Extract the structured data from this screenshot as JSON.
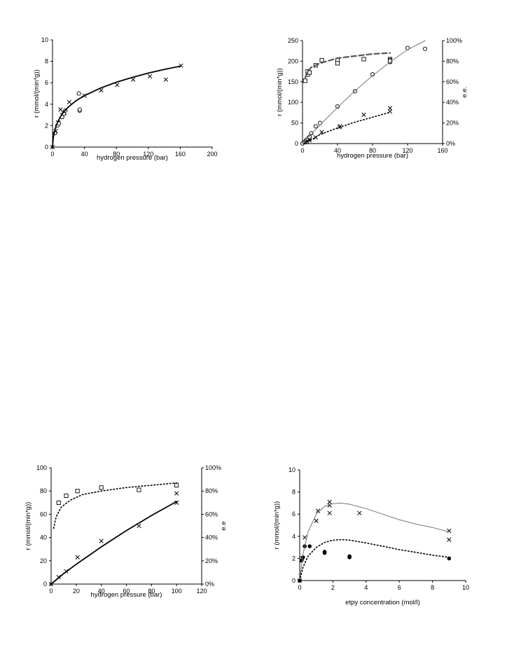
{
  "chart_data": [
    {
      "type": "scatter",
      "xlabel": "hydrogen  pressure (bar)",
      "ylabel": "r (mmol/(min*g))",
      "xlim": [
        0,
        200
      ],
      "ylim": [
        0,
        10
      ],
      "xticks": [
        0,
        40,
        80,
        120,
        160,
        200
      ],
      "yticks": [
        0,
        2,
        4,
        6,
        8,
        10
      ],
      "grid": false,
      "series": [
        {
          "marker": "cross",
          "x": [
            0,
            4,
            7,
            10,
            12,
            15,
            21,
            40,
            61,
            81,
            101,
            122,
            142,
            161
          ],
          "y": [
            0,
            1.5,
            2.3,
            3.5,
            3.0,
            3.2,
            4.2,
            4.8,
            5.3,
            5.8,
            6.3,
            6.6,
            6.3,
            7.6
          ]
        },
        {
          "marker": "circle",
          "x": [
            3,
            6,
            8,
            12,
            14,
            16,
            33,
            34,
            34
          ],
          "y": [
            1.3,
            2.0,
            2.2,
            2.8,
            3.1,
            3.4,
            5.0,
            3.4,
            3.5
          ]
        },
        {
          "marker": "none",
          "line": "solid-thick",
          "x": [
            0,
            1,
            3,
            5,
            10,
            15,
            20,
            30,
            40,
            60,
            80,
            100,
            120,
            140,
            160
          ],
          "y": [
            0,
            0.9,
            1.6,
            2.1,
            2.85,
            3.35,
            3.75,
            4.35,
            4.8,
            5.5,
            6.05,
            6.5,
            6.9,
            7.25,
            7.55
          ]
        }
      ]
    },
    {
      "type": "scatter",
      "xlabel": "hydrogen pressure (bar)",
      "ylabel": "r (mmol/(min*g))",
      "y2label": "e.e.",
      "xlim": [
        0,
        160
      ],
      "ylim": [
        0,
        250
      ],
      "y2lim": [
        0,
        100
      ],
      "xticks": [
        0,
        40,
        80,
        120,
        160
      ],
      "yticks": [
        0,
        50,
        100,
        150,
        200,
        250
      ],
      "y2ticks": [
        "0%",
        "20%",
        "40%",
        "60%",
        "80%",
        "100%"
      ],
      "grid": false,
      "series": [
        {
          "marker": "circle",
          "axis": "left",
          "x": [
            0,
            2,
            4,
            6,
            8,
            10,
            15,
            20,
            40,
            60,
            80,
            100,
            120,
            140
          ],
          "y": [
            0,
            3,
            8,
            12,
            16,
            25,
            42,
            50,
            90,
            127,
            168,
            198,
            232,
            230
          ]
        },
        {
          "marker": "cross",
          "axis": "left",
          "x": [
            3,
            5,
            8,
            15,
            22,
            42,
            43,
            70,
            100,
            100
          ],
          "y": [
            3,
            5,
            8,
            15,
            28,
            40,
            42,
            70,
            78,
            86
          ]
        },
        {
          "marker": "square",
          "axis": "right",
          "x": [
            3,
            6,
            6,
            8,
            15,
            22,
            40,
            40,
            70,
            100,
            100,
            100
          ],
          "y": [
            61,
            70,
            67,
            69,
            76,
            81,
            81,
            78,
            82,
            82,
            81,
            80
          ]
        },
        {
          "marker": "none",
          "axis": "left",
          "line": "solid-gray",
          "x": [
            0,
            20,
            40,
            60,
            80,
            100,
            120,
            140
          ],
          "y": [
            0,
            45,
            88,
            128,
            165,
            198,
            228,
            250
          ]
        },
        {
          "marker": "none",
          "axis": "left",
          "line": "dotted",
          "x": [
            3,
            20,
            40,
            60,
            80,
            100
          ],
          "y": [
            0,
            22,
            38,
            52,
            64,
            76
          ]
        },
        {
          "marker": "none",
          "axis": "right",
          "line": "dashed-thick",
          "x": [
            3,
            6,
            10,
            20,
            40,
            60,
            80,
            100
          ],
          "y": [
            64,
            70,
            74,
            78,
            83,
            85,
            87,
            88
          ]
        }
      ]
    },
    {
      "type": "scatter",
      "xlabel": "hydrogen pressure (bar)",
      "ylabel": "r (mmol/(min*g))",
      "y2label": "e.e",
      "xlim": [
        0,
        120
      ],
      "ylim": [
        0,
        100
      ],
      "y2lim": [
        0,
        100
      ],
      "xticks": [
        0,
        20,
        40,
        60,
        80,
        100,
        120
      ],
      "yticks": [
        0,
        20,
        40,
        60,
        80,
        100
      ],
      "y2ticks": [
        "0%",
        "20%",
        "40%",
        "60%",
        "80%",
        "100%"
      ],
      "grid": false,
      "series": [
        {
          "marker": "cross",
          "axis": "left",
          "x": [
            0,
            6,
            12,
            21,
            40,
            70,
            100,
            100
          ],
          "y": [
            0,
            6,
            11,
            23,
            37,
            50,
            70,
            78
          ]
        },
        {
          "marker": "square",
          "axis": "right",
          "x": [
            6,
            12,
            21,
            40,
            70,
            100
          ],
          "y": [
            70,
            76,
            80,
            83,
            81,
            85
          ]
        },
        {
          "marker": "none",
          "axis": "left",
          "line": "solid-thick",
          "x": [
            0,
            10,
            20,
            40,
            60,
            80,
            100
          ],
          "y": [
            0,
            9,
            17,
            32,
            46,
            59,
            71
          ]
        },
        {
          "marker": "none",
          "axis": "right",
          "line": "dotted",
          "x": [
            2,
            4,
            8,
            15,
            25,
            40,
            60,
            80,
            100
          ],
          "y": [
            48,
            58,
            66,
            72,
            77,
            80,
            83,
            85,
            87
          ]
        }
      ]
    },
    {
      "type": "scatter",
      "xlabel": "etpy concentration (mol/l)",
      "ylabel": "r (mmol/(min*g))",
      "xlim": [
        0,
        10
      ],
      "ylim": [
        0,
        10
      ],
      "xticks": [
        0,
        2,
        4,
        6,
        8,
        10
      ],
      "yticks": [
        0,
        2,
        4,
        6,
        8,
        10
      ],
      "grid": false,
      "series": [
        {
          "marker": "cross",
          "x": [
            0,
            0.15,
            0.3,
            1,
            1.1,
            1.8,
            1.8,
            1.8,
            3.6,
            9,
            9
          ],
          "y": [
            0,
            2.0,
            3.9,
            5.4,
            6.3,
            7.1,
            6.8,
            6.1,
            6.1,
            4.5,
            3.7
          ]
        },
        {
          "marker": "dot",
          "x": [
            0,
            0.1,
            0.2,
            0.3,
            0.6,
            1.5,
            1.5,
            3,
            3,
            9
          ],
          "y": [
            0,
            1.8,
            2.1,
            3.1,
            3.1,
            2.5,
            2.6,
            2.1,
            2.2,
            2.0
          ]
        },
        {
          "marker": "none",
          "line": "solid-gray",
          "x": [
            0,
            0.2,
            0.5,
            1,
            1.5,
            2,
            2.5,
            3,
            4,
            5,
            6,
            7,
            8,
            9
          ],
          "y": [
            0,
            2.4,
            4.4,
            6.0,
            6.7,
            6.95,
            7.0,
            6.9,
            6.5,
            6.0,
            5.5,
            5.1,
            4.8,
            4.4
          ]
        },
        {
          "marker": "none",
          "line": "dotted",
          "x": [
            0,
            0.2,
            0.5,
            1,
            1.5,
            2,
            2.5,
            3,
            4,
            5,
            6,
            7,
            8,
            9
          ],
          "y": [
            0,
            1.2,
            2.2,
            3.0,
            3.45,
            3.65,
            3.7,
            3.65,
            3.4,
            3.1,
            2.8,
            2.55,
            2.3,
            2.1
          ]
        }
      ]
    }
  ]
}
